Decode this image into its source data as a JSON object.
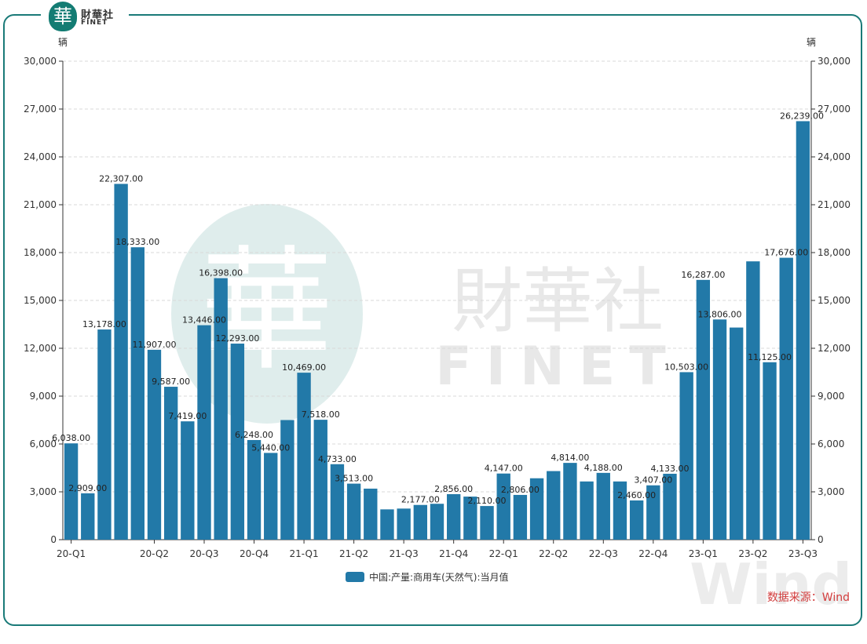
{
  "logo": {
    "badge": "華",
    "cn": "財華社",
    "en": "FINET"
  },
  "source_label": "数据来源：Wind",
  "colors": {
    "bar": "#2279a8",
    "frame": "#1a7a78",
    "source": "#d23c3c"
  },
  "chart_data": {
    "type": "bar",
    "unit_left": "辆",
    "unit_right": "辆",
    "ylim": [
      0,
      30000
    ],
    "yticks": [
      "0",
      "3,000",
      "6,000",
      "9,000",
      "12,000",
      "15,000",
      "18,000",
      "21,000",
      "24,000",
      "27,000",
      "30,000"
    ],
    "grid": true,
    "legend_position": "bottom",
    "series": [
      {
        "name": "中国:产量:商用车(天然气):当月值",
        "values": [
          6038,
          2909,
          13178,
          22307,
          18333,
          11907,
          9587,
          7419,
          13446,
          16398,
          12293,
          6248,
          5440,
          7500,
          10469,
          7518,
          4733,
          3513,
          3200,
          1900,
          1950,
          2177,
          2250,
          2856,
          2700,
          2110,
          4147,
          2806,
          3850,
          4300,
          4814,
          3650,
          4188,
          3650,
          2460,
          3407,
          4133,
          10503,
          16287,
          13806,
          13300,
          17450,
          11125,
          17676,
          26239
        ]
      }
    ],
    "data_labels": [
      {
        "i": 0,
        "text": "6,038.00"
      },
      {
        "i": 1,
        "text": "2,909.00"
      },
      {
        "i": 2,
        "text": "13,178.00"
      },
      {
        "i": 3,
        "text": "22,307.00"
      },
      {
        "i": 4,
        "text": "18,333.00"
      },
      {
        "i": 5,
        "text": "11,907.00"
      },
      {
        "i": 6,
        "text": "9,587.00"
      },
      {
        "i": 7,
        "text": "7,419.00"
      },
      {
        "i": 8,
        "text": "13,446.00"
      },
      {
        "i": 9,
        "text": "16,398.00"
      },
      {
        "i": 10,
        "text": "12,293.00"
      },
      {
        "i": 11,
        "text": "6,248.00"
      },
      {
        "i": 12,
        "text": "5,440.00"
      },
      {
        "i": 14,
        "text": "10,469.00"
      },
      {
        "i": 15,
        "text": "7,518.00"
      },
      {
        "i": 16,
        "text": "4,733.00"
      },
      {
        "i": 17,
        "text": "3,513.00"
      },
      {
        "i": 21,
        "text": "2,177.00"
      },
      {
        "i": 23,
        "text": "2,856.00"
      },
      {
        "i": 25,
        "text": "2,110.00"
      },
      {
        "i": 26,
        "text": "4,147.00"
      },
      {
        "i": 27,
        "text": "2,806.00"
      },
      {
        "i": 30,
        "text": "4,814.00"
      },
      {
        "i": 32,
        "text": "4,188.00"
      },
      {
        "i": 34,
        "text": "2,460.00"
      },
      {
        "i": 35,
        "text": "3,407.00"
      },
      {
        "i": 36,
        "text": "4,133.00"
      },
      {
        "i": 37,
        "text": "10,503.00"
      },
      {
        "i": 38,
        "text": "16,287.00"
      },
      {
        "i": 39,
        "text": "13,806.00"
      },
      {
        "i": 42,
        "text": "11,125.00"
      },
      {
        "i": 43,
        "text": "17,676.00"
      },
      {
        "i": 44,
        "text": "26,239.00"
      }
    ],
    "x_ticks": [
      {
        "i": 0,
        "text": "20-Q1"
      },
      {
        "i": 5,
        "text": "20-Q2"
      },
      {
        "i": 8,
        "text": "20-Q3"
      },
      {
        "i": 11,
        "text": "20-Q4"
      },
      {
        "i": 14,
        "text": "21-Q1"
      },
      {
        "i": 17,
        "text": "21-Q2"
      },
      {
        "i": 20,
        "text": "21-Q3"
      },
      {
        "i": 23,
        "text": "21-Q4"
      },
      {
        "i": 26,
        "text": "22-Q1"
      },
      {
        "i": 29,
        "text": "22-Q2"
      },
      {
        "i": 32,
        "text": "22-Q3"
      },
      {
        "i": 35,
        "text": "22-Q4"
      },
      {
        "i": 38,
        "text": "23-Q1"
      },
      {
        "i": 41,
        "text": "23-Q2"
      },
      {
        "i": 44,
        "text": "23-Q3"
      }
    ]
  },
  "watermark": {
    "cn": "財華社",
    "en": "FINET",
    "badge": "華",
    "wind": "Wind"
  }
}
